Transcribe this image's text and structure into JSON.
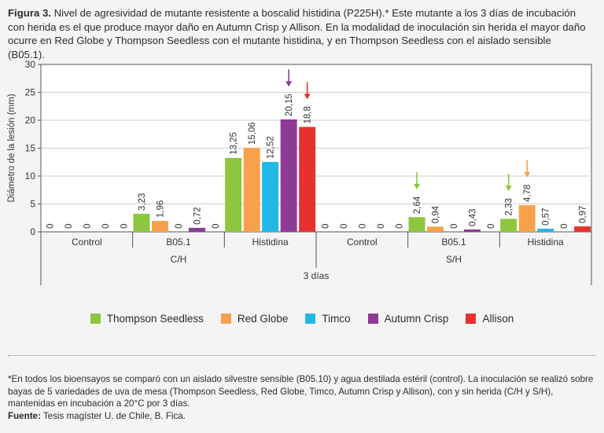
{
  "caption": {
    "label": "Figura 3.",
    "text": "Nivel de agresividad de mutante resistente a boscalid histidina (P225H).* Este mutante a los 3 días de incubación con herida es el que produce mayor daño en Autumn Crisp y Allison. En la modalidad de inoculación sin herida el mayor daño ocurre en Red Globe y Thompson Seedless con el mutante histidina, y en Thompson Seedless con el aislado sensible (B05.1)."
  },
  "chart_data": {
    "type": "bar",
    "title": "",
    "ylabel": "Diámetro de la lesión (mm)",
    "xlabel": "3 días",
    "ylim": [
      0,
      30
    ],
    "yticks": [
      0,
      5,
      10,
      15,
      20,
      25,
      30
    ],
    "series": [
      {
        "name": "Thompson Seedless",
        "color": "#8dc63f"
      },
      {
        "name": "Red Globe",
        "color": "#f7a24b"
      },
      {
        "name": "Timco",
        "color": "#22b8e6"
      },
      {
        "name": "Autumn Crisp",
        "color": "#8e3a97"
      },
      {
        "name": "Allison",
        "color": "#e8312f"
      }
    ],
    "groups": [
      {
        "label": "Control",
        "condition": "C/H",
        "values": [
          0,
          0,
          0,
          0,
          0
        ],
        "labels": [
          "0",
          "0",
          "0",
          "0",
          "0"
        ],
        "arrows": []
      },
      {
        "label": "B05.1",
        "condition": "C/H",
        "values": [
          3.23,
          1.96,
          0,
          0.72,
          0
        ],
        "labels": [
          "3,23",
          "1,96",
          "0",
          "0,72",
          "0"
        ],
        "arrows": []
      },
      {
        "label": "Histidina",
        "condition": "C/H",
        "values": [
          13.25,
          15.06,
          12.52,
          20.15,
          18.8
        ],
        "labels": [
          "13,25",
          "15,06",
          "12,52",
          "20,15",
          "18,8"
        ],
        "arrows": [
          3,
          4
        ]
      },
      {
        "label": "Control",
        "condition": "S/H",
        "values": [
          0,
          0,
          0,
          0,
          0
        ],
        "labels": [
          "0",
          "0",
          "0",
          "0",
          "0"
        ],
        "arrows": []
      },
      {
        "label": "B05.1",
        "condition": "S/H",
        "values": [
          2.64,
          0.94,
          0,
          0.43,
          0
        ],
        "labels": [
          "2,64",
          "0,94",
          "0",
          "0,43",
          "0"
        ],
        "arrows": [
          0
        ]
      },
      {
        "label": "Histidina",
        "condition": "S/H",
        "values": [
          2.33,
          4.78,
          0.57,
          0,
          0.97
        ],
        "labels": [
          "2,33",
          "4,78",
          "0,57",
          "0",
          "0,97"
        ],
        "arrows": [
          0,
          1
        ]
      }
    ],
    "conditions": [
      "C/H",
      "S/H"
    ]
  },
  "footnote": {
    "text": "*En todos los bioensayos se comparó con un aislado silvestre sensible (B05.10) y agua destilada estéril (control). La inoculación se realizó sobre bayas de 5 variedades de uva de mesa (Thompson Seedless, Red Globe, Timco, Autumn Crisp y Allison), con y sin herida (C/H y S/H), mantenidas en incubación a 20°C por 3 días.",
    "source_label": "Fuente:",
    "source_text": "Tesis magíster U. de Chile, B. Fica."
  }
}
